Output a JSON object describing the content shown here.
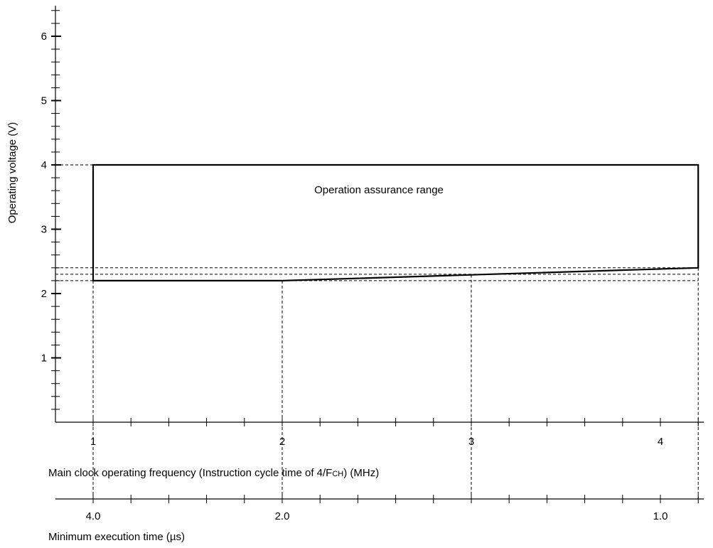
{
  "chart_data": {
    "type": "area",
    "title": "",
    "ylabel": "Operating voltage (V)",
    "xlabel": "Main clock operating frequency (Instruction cycle time of 4/F",
    "xlabel_sub": "CH",
    "xlabel_tail": ") (MHz)",
    "x2label": "Minimum execution time (µs)",
    "ylim": [
      0,
      6.5
    ],
    "xlim": [
      0.8,
      4.2
    ],
    "y_ticks": [
      1,
      2,
      3,
      4,
      5,
      6
    ],
    "y_tick_labels": [
      "1",
      "2",
      "3",
      "4",
      "5",
      "6"
    ],
    "x_ticks": [
      1,
      2,
      3,
      4
    ],
    "x_tick_labels": [
      "1",
      "2",
      "3",
      "4"
    ],
    "x2_ticks": [
      1,
      2,
      4
    ],
    "x2_tick_labels": [
      "4.0",
      "2.0",
      "1.0"
    ],
    "grid": false,
    "region": {
      "name": "Operation assurance range",
      "upper": [
        {
          "x": 1,
          "y": 4.0
        },
        {
          "x": 4.2,
          "y": 4.0
        }
      ],
      "lower": [
        {
          "x": 1,
          "y": 2.2
        },
        {
          "x": 2,
          "y": 2.2
        },
        {
          "x": 4.2,
          "y": 2.4
        }
      ]
    },
    "reference_lines": {
      "horizontal": [
        4.0,
        2.4,
        2.3,
        2.2
      ],
      "vertical": [
        1,
        2,
        3,
        4.2
      ]
    }
  }
}
